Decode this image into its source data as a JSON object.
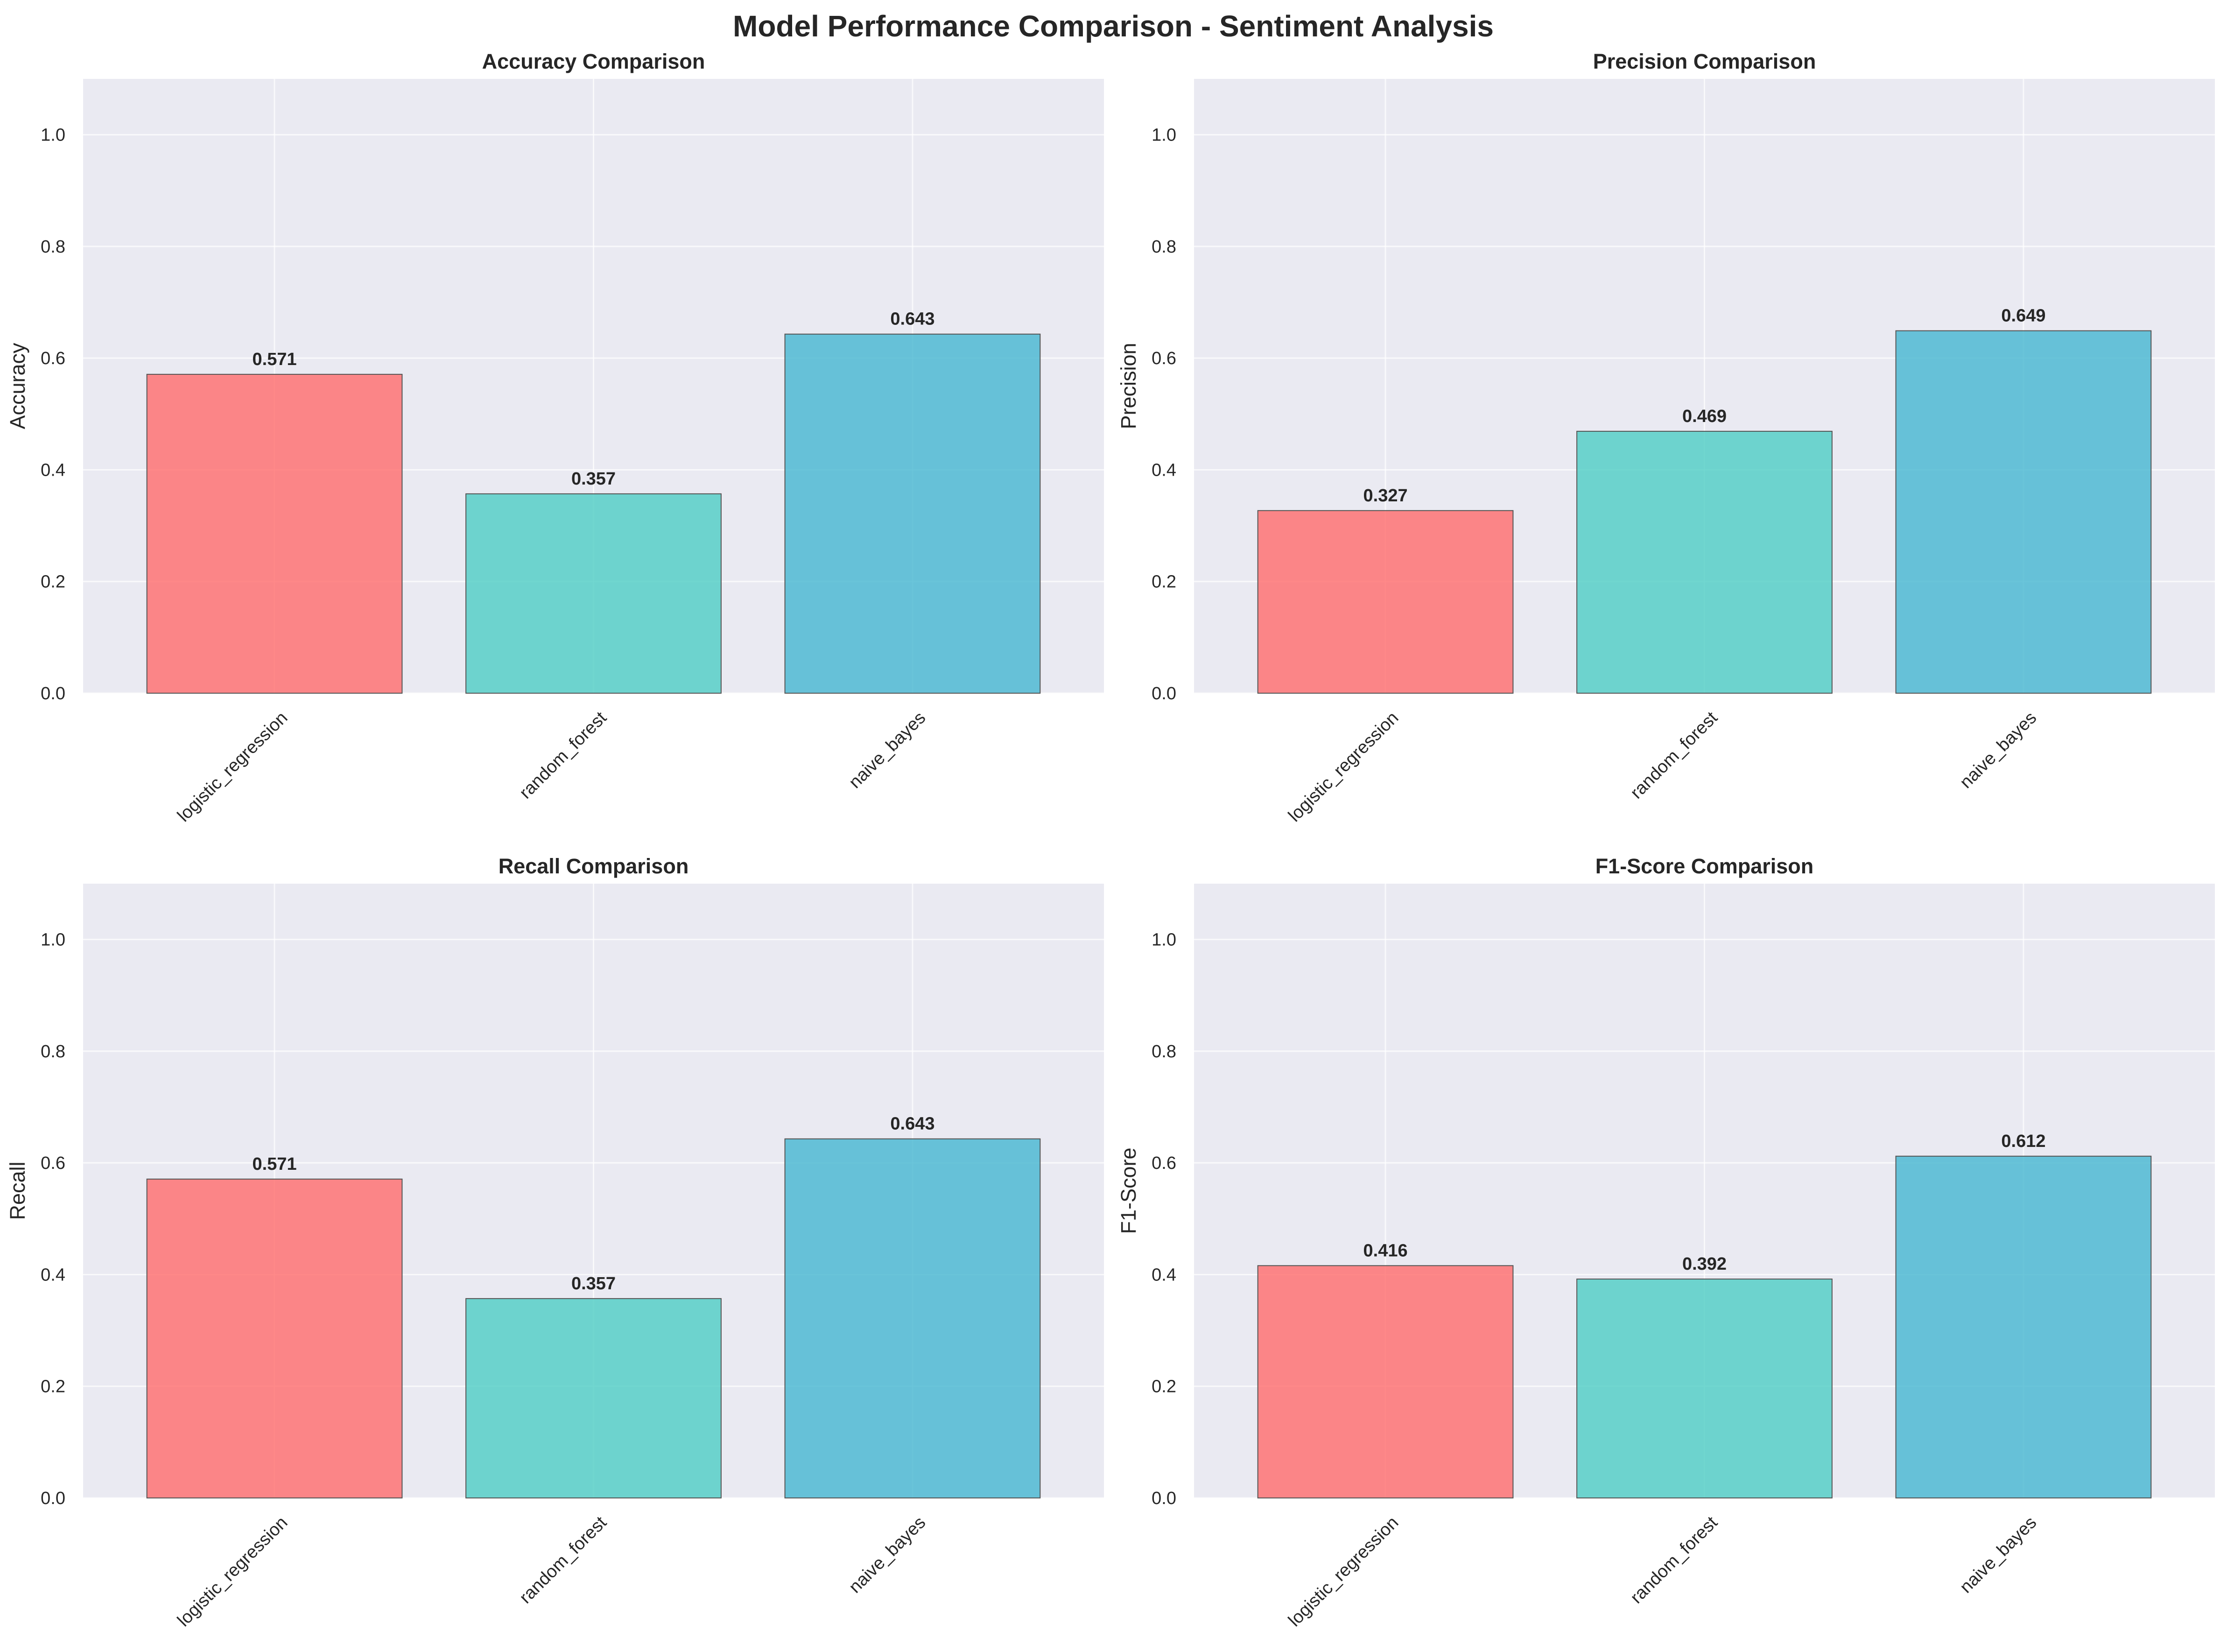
{
  "figure": {
    "title": "Model Performance Comparison - Sentiment Analysis"
  },
  "chart_data": [
    {
      "type": "bar",
      "title": "Accuracy Comparison",
      "xlabel": "",
      "ylabel": "Accuracy",
      "categories": [
        "logistic_regression",
        "random_forest",
        "naive_bayes"
      ],
      "values": [
        0.571,
        0.357,
        0.643
      ],
      "value_labels": [
        "0.571",
        "0.357",
        "0.643"
      ],
      "colors": [
        "#FF6B6B",
        "#4ECDC4",
        "#45B7D1"
      ],
      "ylim": [
        0,
        1.1
      ],
      "yticks": [
        0.0,
        0.2,
        0.4,
        0.6,
        0.8,
        1.0
      ],
      "ytick_labels": [
        "0.0",
        "0.2",
        "0.4",
        "0.6",
        "0.8",
        "1.0"
      ],
      "grid": true
    },
    {
      "type": "bar",
      "title": "Precision Comparison",
      "xlabel": "",
      "ylabel": "Precision",
      "categories": [
        "logistic_regression",
        "random_forest",
        "naive_bayes"
      ],
      "values": [
        0.327,
        0.469,
        0.649
      ],
      "value_labels": [
        "0.327",
        "0.469",
        "0.649"
      ],
      "colors": [
        "#FF6B6B",
        "#4ECDC4",
        "#45B7D1"
      ],
      "ylim": [
        0,
        1.1
      ],
      "yticks": [
        0.0,
        0.2,
        0.4,
        0.6,
        0.8,
        1.0
      ],
      "ytick_labels": [
        "0.0",
        "0.2",
        "0.4",
        "0.6",
        "0.8",
        "1.0"
      ],
      "grid": true
    },
    {
      "type": "bar",
      "title": "Recall Comparison",
      "xlabel": "",
      "ylabel": "Recall",
      "categories": [
        "logistic_regression",
        "random_forest",
        "naive_bayes"
      ],
      "values": [
        0.571,
        0.357,
        0.643
      ],
      "value_labels": [
        "0.571",
        "0.357",
        "0.643"
      ],
      "colors": [
        "#FF6B6B",
        "#4ECDC4",
        "#45B7D1"
      ],
      "ylim": [
        0,
        1.1
      ],
      "yticks": [
        0.0,
        0.2,
        0.4,
        0.6,
        0.8,
        1.0
      ],
      "ytick_labels": [
        "0.0",
        "0.2",
        "0.4",
        "0.6",
        "0.8",
        "1.0"
      ],
      "grid": true
    },
    {
      "type": "bar",
      "title": "F1-Score Comparison",
      "xlabel": "",
      "ylabel": "F1-Score",
      "categories": [
        "logistic_regression",
        "random_forest",
        "naive_bayes"
      ],
      "values": [
        0.416,
        0.392,
        0.612
      ],
      "value_labels": [
        "0.416",
        "0.392",
        "0.612"
      ],
      "colors": [
        "#FF6B6B",
        "#4ECDC4",
        "#45B7D1"
      ],
      "ylim": [
        0,
        1.1
      ],
      "yticks": [
        0.0,
        0.2,
        0.4,
        0.6,
        0.8,
        1.0
      ],
      "ytick_labels": [
        "0.0",
        "0.2",
        "0.4",
        "0.6",
        "0.8",
        "1.0"
      ],
      "grid": true
    }
  ],
  "style": {
    "axes_background": "#EAEAF2",
    "grid_color": "#FFFFFF",
    "bar_edge": "#555555",
    "text_color": "#262626"
  }
}
